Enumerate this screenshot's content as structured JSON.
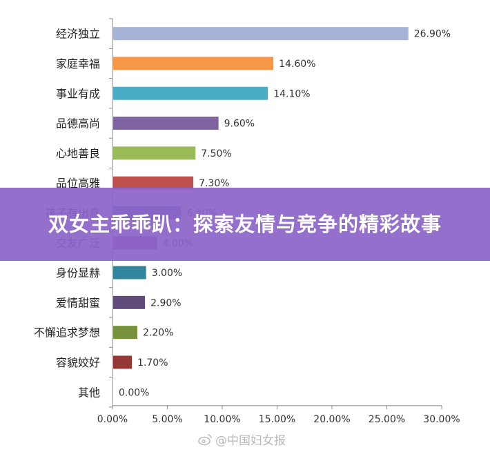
{
  "chart_data": {
    "type": "bar",
    "orientation": "horizontal",
    "categories": [
      "经济独立",
      "家庭幸福",
      "事业有成",
      "品德高尚",
      "心地善良",
      "品位高雅",
      "孩子有出息",
      "交友广泛",
      "身份显赫",
      "爱情甜蜜",
      "不懈追求梦想",
      "容貌姣好",
      "其他"
    ],
    "values": [
      26.9,
      14.6,
      14.1,
      9.6,
      7.5,
      7.3,
      6.2,
      4.0,
      3.0,
      2.9,
      2.2,
      1.7,
      0.0
    ],
    "value_labels": [
      "26.90%",
      "14.60%",
      "14.10%",
      "9.60%",
      "7.50%",
      "7.30%",
      "6.20%",
      "4.00%",
      "3.00%",
      "2.90%",
      "2.20%",
      "1.70%",
      "0.00%"
    ],
    "bar_colors": [
      "#a5b3d6",
      "#f79646",
      "#4bacc6",
      "#8064a2",
      "#9bbb59",
      "#c0504d",
      "#4f81bd",
      "#8e4a8a",
      "#31859c",
      "#604a7b",
      "#77933c",
      "#953735",
      "#a5b3d6"
    ],
    "xlim": [
      0,
      30
    ],
    "xticks": [
      "0.00%",
      "5.00%",
      "10.00%",
      "15.00%",
      "20.00%",
      "25.00%",
      "30.00%"
    ],
    "grid": false
  },
  "banner": {
    "title": "双女主乖乖趴：探索友情与竞争的精彩故事"
  },
  "watermark": {
    "text": "@中国妇女报",
    "icon": "weibo-icon"
  }
}
